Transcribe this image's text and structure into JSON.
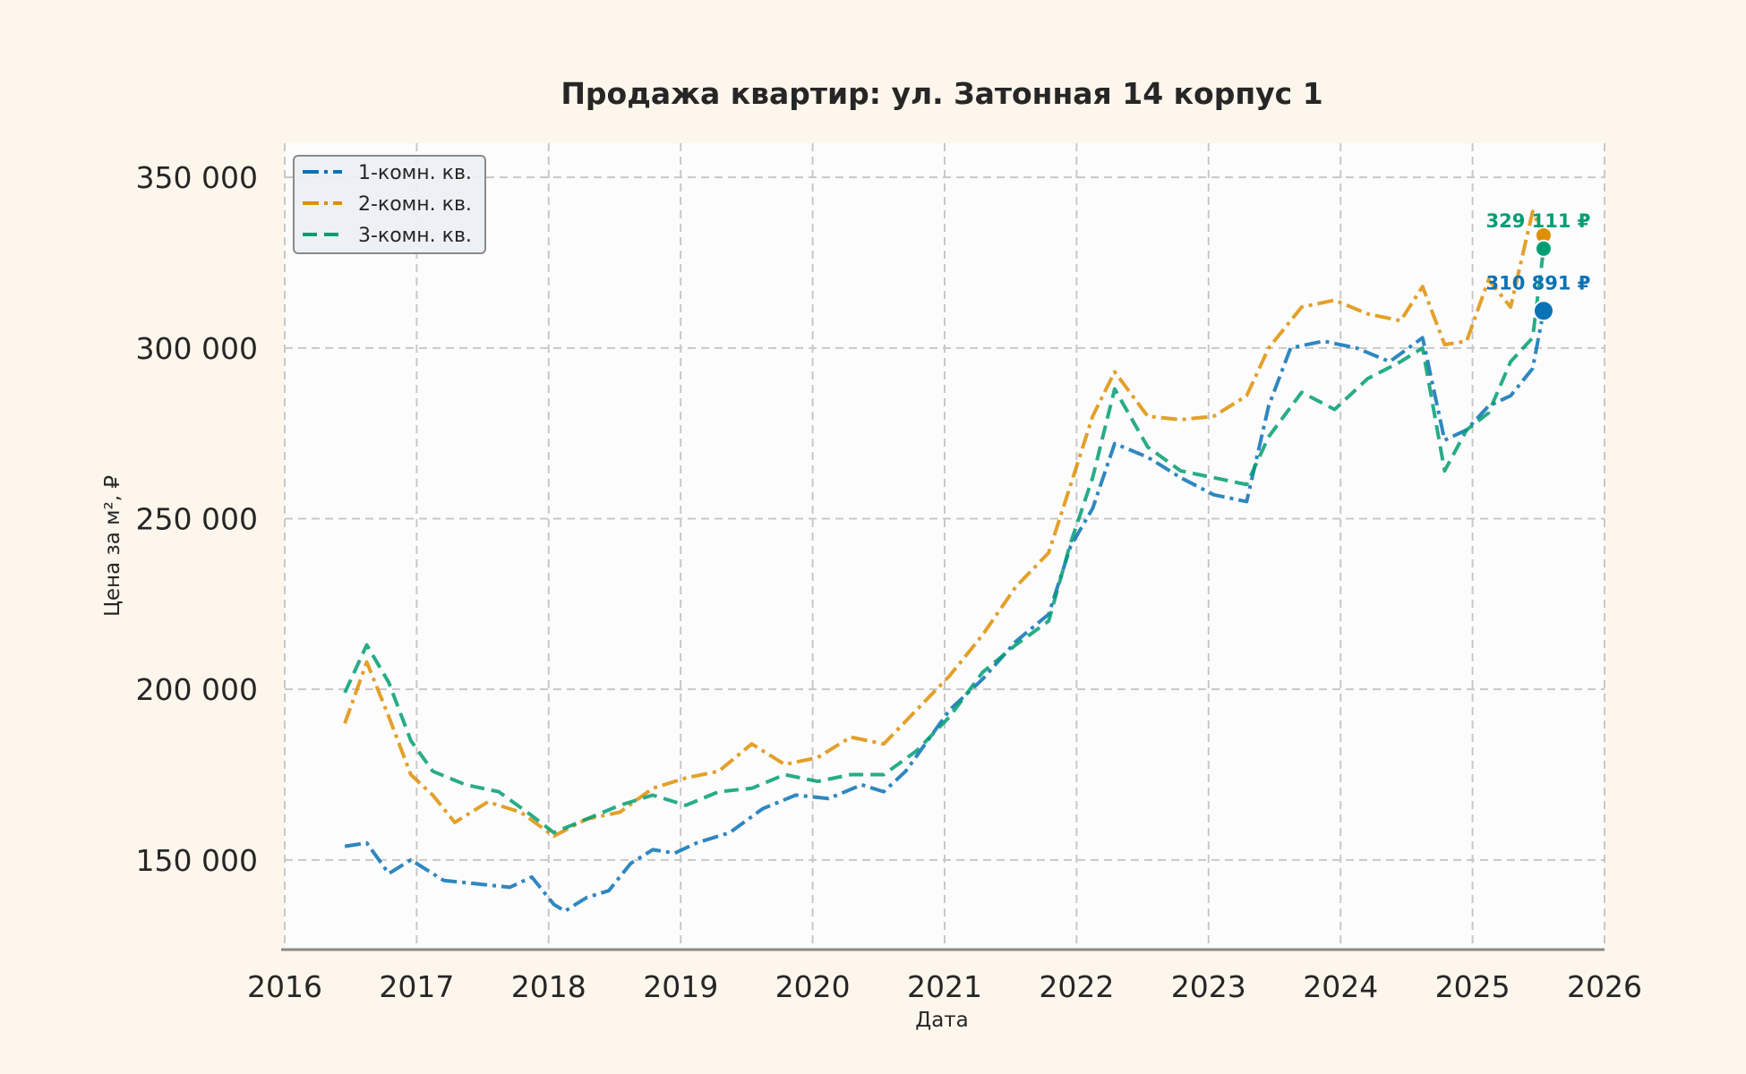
{
  "chart_data": {
    "type": "line",
    "title": "Продажа квартир: ул. Затонная 14 корпус 1",
    "xlabel": "Дата",
    "ylabel": "Цена за м², ₽",
    "x_ticks": [
      "2016",
      "2017",
      "2018",
      "2019",
      "2020",
      "2021",
      "2022",
      "2023",
      "2024",
      "2025",
      "2026"
    ],
    "y_ticks": [
      "150 000",
      "200 000",
      "250 000",
      "300 000",
      "350 000"
    ],
    "xlim": [
      "2016-01-01",
      "2026-01-01"
    ],
    "ylim": [
      124000,
      360000
    ],
    "grid": true,
    "legend_position": "top-left",
    "series": [
      {
        "name": "1-комн. кв.",
        "color": "#0b72b5",
        "dash": "dashdot",
        "points": [
          [
            "2016-06",
            154000
          ],
          [
            "2016-08",
            155000
          ],
          [
            "2016-10",
            146000
          ],
          [
            "2016-12",
            150000
          ],
          [
            "2017-03",
            144000
          ],
          [
            "2017-06",
            143000
          ],
          [
            "2017-09",
            142000
          ],
          [
            "2017-11",
            145000
          ],
          [
            "2018-01",
            137000
          ],
          [
            "2018-02",
            135000
          ],
          [
            "2018-04",
            139000
          ],
          [
            "2018-06",
            141000
          ],
          [
            "2018-08",
            149000
          ],
          [
            "2018-10",
            153000
          ],
          [
            "2018-12",
            152000
          ],
          [
            "2019-02",
            155000
          ],
          [
            "2019-05",
            158000
          ],
          [
            "2019-08",
            165000
          ],
          [
            "2019-11",
            169000
          ],
          [
            "2020-02",
            168000
          ],
          [
            "2020-05",
            172000
          ],
          [
            "2020-07",
            170000
          ],
          [
            "2020-09",
            176000
          ],
          [
            "2020-11",
            185000
          ],
          [
            "2021-01",
            194000
          ],
          [
            "2021-04",
            203000
          ],
          [
            "2021-07",
            214000
          ],
          [
            "2021-10",
            222000
          ],
          [
            "2021-12",
            242000
          ],
          [
            "2022-02",
            253000
          ],
          [
            "2022-04",
            272000
          ],
          [
            "2022-07",
            268000
          ],
          [
            "2022-10",
            262000
          ],
          [
            "2023-01",
            257000
          ],
          [
            "2023-04",
            255000
          ],
          [
            "2023-06",
            283000
          ],
          [
            "2023-08",
            300000
          ],
          [
            "2023-11",
            302000
          ],
          [
            "2024-02",
            300000
          ],
          [
            "2024-05",
            296000
          ],
          [
            "2024-08",
            303000
          ],
          [
            "2024-10",
            273000
          ],
          [
            "2024-12",
            276000
          ],
          [
            "2025-02",
            283000
          ],
          [
            "2025-04",
            286000
          ],
          [
            "2025-06",
            294000
          ],
          [
            "2025-07",
            310891
          ]
        ]
      },
      {
        "name": "2-комн. кв.",
        "color": "#de8f05",
        "dash": "dashdot",
        "points": [
          [
            "2016-06",
            190000
          ],
          [
            "2016-08",
            208000
          ],
          [
            "2016-10",
            192000
          ],
          [
            "2016-12",
            175000
          ],
          [
            "2017-02",
            169000
          ],
          [
            "2017-04",
            161000
          ],
          [
            "2017-07",
            167000
          ],
          [
            "2017-10",
            164000
          ],
          [
            "2018-01",
            157000
          ],
          [
            "2018-04",
            162000
          ],
          [
            "2018-07",
            164000
          ],
          [
            "2018-10",
            171000
          ],
          [
            "2019-01",
            174000
          ],
          [
            "2019-04",
            176000
          ],
          [
            "2019-07",
            184000
          ],
          [
            "2019-10",
            178000
          ],
          [
            "2020-01",
            180000
          ],
          [
            "2020-04",
            186000
          ],
          [
            "2020-07",
            184000
          ],
          [
            "2020-10",
            194000
          ],
          [
            "2021-01",
            204000
          ],
          [
            "2021-04",
            216000
          ],
          [
            "2021-07",
            230000
          ],
          [
            "2021-10",
            240000
          ],
          [
            "2021-12",
            260000
          ],
          [
            "2022-02",
            280000
          ],
          [
            "2022-04",
            293000
          ],
          [
            "2022-07",
            280000
          ],
          [
            "2022-10",
            279000
          ],
          [
            "2023-01",
            280000
          ],
          [
            "2023-04",
            286000
          ],
          [
            "2023-06",
            300000
          ],
          [
            "2023-09",
            312000
          ],
          [
            "2023-12",
            314000
          ],
          [
            "2024-03",
            310000
          ],
          [
            "2024-06",
            308000
          ],
          [
            "2024-08",
            318000
          ],
          [
            "2024-10",
            301000
          ],
          [
            "2024-12",
            302000
          ],
          [
            "2025-02",
            320000
          ],
          [
            "2025-04",
            312000
          ],
          [
            "2025-06",
            340000
          ],
          [
            "2025-07",
            333000
          ]
        ]
      },
      {
        "name": "3-комн. кв.",
        "color": "#029e73",
        "dash": "dashed",
        "points": [
          [
            "2016-06",
            199000
          ],
          [
            "2016-08",
            213000
          ],
          [
            "2016-10",
            202000
          ],
          [
            "2016-12",
            185000
          ],
          [
            "2017-02",
            176000
          ],
          [
            "2017-05",
            172000
          ],
          [
            "2017-08",
            170000
          ],
          [
            "2017-11",
            163000
          ],
          [
            "2018-01",
            158000
          ],
          [
            "2018-04",
            162000
          ],
          [
            "2018-07",
            166000
          ],
          [
            "2018-10",
            169000
          ],
          [
            "2019-01",
            166000
          ],
          [
            "2019-04",
            170000
          ],
          [
            "2019-07",
            171000
          ],
          [
            "2019-10",
            175000
          ],
          [
            "2020-01",
            173000
          ],
          [
            "2020-04",
            175000
          ],
          [
            "2020-07",
            175000
          ],
          [
            "2020-10",
            182000
          ],
          [
            "2021-01",
            192000
          ],
          [
            "2021-04",
            205000
          ],
          [
            "2021-07",
            213000
          ],
          [
            "2021-10",
            220000
          ],
          [
            "2021-12",
            243000
          ],
          [
            "2022-02",
            262000
          ],
          [
            "2022-04",
            288000
          ],
          [
            "2022-07",
            271000
          ],
          [
            "2022-10",
            264000
          ],
          [
            "2023-01",
            262000
          ],
          [
            "2023-04",
            260000
          ],
          [
            "2023-06",
            274000
          ],
          [
            "2023-09",
            287000
          ],
          [
            "2023-12",
            282000
          ],
          [
            "2024-03",
            291000
          ],
          [
            "2024-06",
            296000
          ],
          [
            "2024-08",
            300000
          ],
          [
            "2024-10",
            264000
          ],
          [
            "2024-12",
            276000
          ],
          [
            "2025-02",
            281000
          ],
          [
            "2025-04",
            296000
          ],
          [
            "2025-06",
            303000
          ],
          [
            "2025-07",
            329111
          ]
        ]
      }
    ],
    "end_points": [
      {
        "series": "2-комн. кв.",
        "date": "2025-07",
        "value": 333000,
        "label": ""
      },
      {
        "series": "3-комн. кв.",
        "date": "2025-07",
        "value": 329111,
        "label": "329 111 ₽"
      },
      {
        "series": "1-комн. кв.",
        "date": "2025-07",
        "value": 310891,
        "label": "310 891 ₽"
      }
    ]
  }
}
